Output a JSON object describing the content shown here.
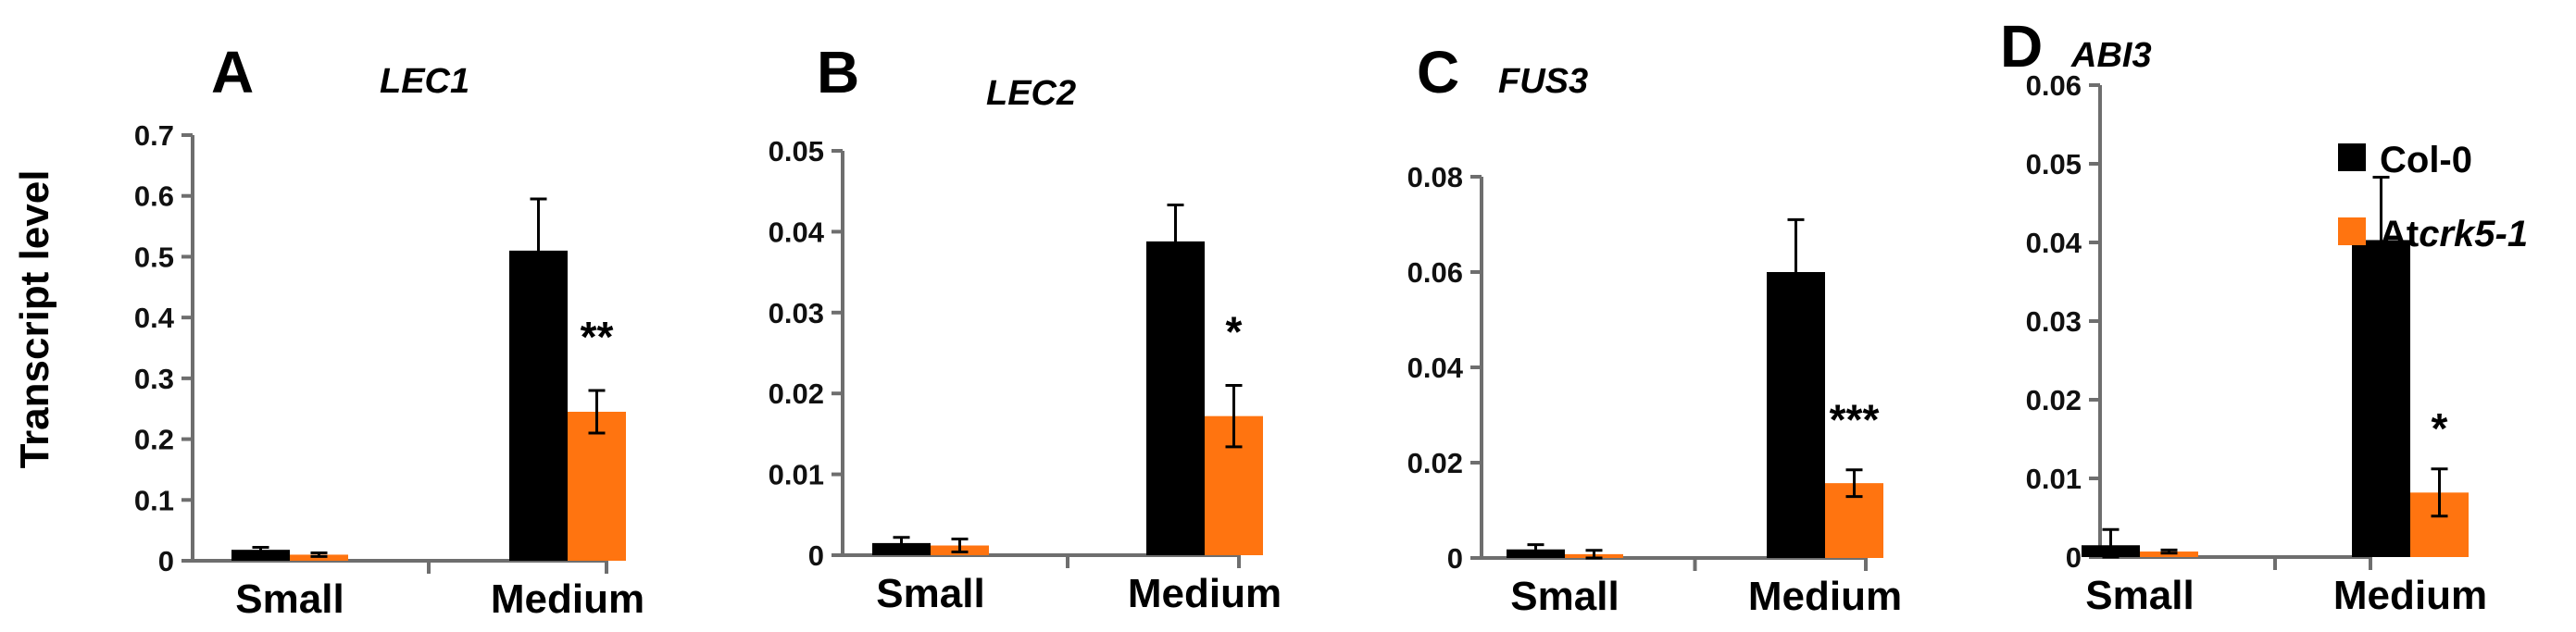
{
  "chart_data": [
    {
      "type": "bar",
      "panel": "A",
      "title": "LEC1",
      "ylabel": "Transcript level",
      "ylim": [
        0,
        0.7
      ],
      "yticks": [
        0,
        0.1,
        0.2,
        0.3,
        0.4,
        0.5,
        0.6,
        0.7
      ],
      "ytick_labels": [
        "0",
        "0.1",
        "0.2",
        "0.3",
        "0.4",
        "0.5",
        "0.6",
        "0.7"
      ],
      "categories": [
        "Small",
        "Medium"
      ],
      "series": [
        {
          "name": "Col-0",
          "values": [
            0.018,
            0.51
          ],
          "errors": [
            0.004,
            0.085
          ]
        },
        {
          "name": "Atcrk5-1",
          "values": [
            0.01,
            0.245
          ],
          "errors": [
            0.003,
            0.035
          ]
        }
      ],
      "significance": [
        {
          "category": "Medium",
          "label": "**"
        }
      ]
    },
    {
      "type": "bar",
      "panel": "B",
      "title": "LEC2",
      "ylim": [
        0,
        0.05
      ],
      "yticks": [
        0,
        0.01,
        0.02,
        0.03,
        0.04,
        0.05
      ],
      "ytick_labels": [
        "0",
        "0.01",
        "0.02",
        "0.03",
        "0.04",
        "0.05"
      ],
      "categories": [
        "Small",
        "Medium"
      ],
      "series": [
        {
          "name": "Col-0",
          "values": [
            0.0015,
            0.0388
          ],
          "errors": [
            0.0007,
            0.0045
          ]
        },
        {
          "name": "Atcrk5-1",
          "values": [
            0.0012,
            0.0172
          ],
          "errors": [
            0.0008,
            0.0038
          ]
        }
      ],
      "significance": [
        {
          "category": "Medium",
          "label": "*"
        }
      ]
    },
    {
      "type": "bar",
      "panel": "C",
      "title": "FUS3",
      "ylim": [
        0,
        0.08
      ],
      "yticks": [
        0,
        0.02,
        0.04,
        0.06,
        0.08
      ],
      "ytick_labels": [
        "0",
        "0.02",
        "0.04",
        "0.06",
        "0.08"
      ],
      "categories": [
        "Small",
        "Medium"
      ],
      "series": [
        {
          "name": "Col-0",
          "values": [
            0.0018,
            0.06
          ],
          "errors": [
            0.001,
            0.011
          ]
        },
        {
          "name": "Atcrk5-1",
          "values": [
            0.0008,
            0.0157
          ],
          "errors": [
            0.0008,
            0.0028
          ]
        }
      ],
      "significance": [
        {
          "category": "Medium",
          "label": "***"
        }
      ]
    },
    {
      "type": "bar",
      "panel": "D",
      "title": "ABI3",
      "ylim": [
        0,
        0.06
      ],
      "yticks": [
        0,
        0.01,
        0.02,
        0.03,
        0.04,
        0.05,
        0.06
      ],
      "ytick_labels": [
        "0",
        "0.01",
        "0.02",
        "0.03",
        "0.04",
        "0.05",
        "0.06"
      ],
      "categories": [
        "Small",
        "Medium"
      ],
      "series": [
        {
          "name": "Col-0",
          "values": [
            0.0015,
            0.0403
          ],
          "errors": [
            0.002,
            0.008
          ]
        },
        {
          "name": "Atcrk5-1",
          "values": [
            0.0007,
            0.0082
          ],
          "errors": [
            0.0002,
            0.003
          ]
        }
      ],
      "significance": [
        {
          "category": "Medium",
          "label": "*"
        }
      ]
    }
  ],
  "legend": {
    "entries": [
      {
        "label": "Col-0",
        "color": "#000000"
      },
      {
        "label_prefix": "At",
        "label_italic": "crk5-1",
        "color": "#ff7410"
      }
    ]
  },
  "colors": {
    "Col-0": "#000000",
    "Atcrk5-1": "#ff7410",
    "axis": "#6e6e6e"
  }
}
